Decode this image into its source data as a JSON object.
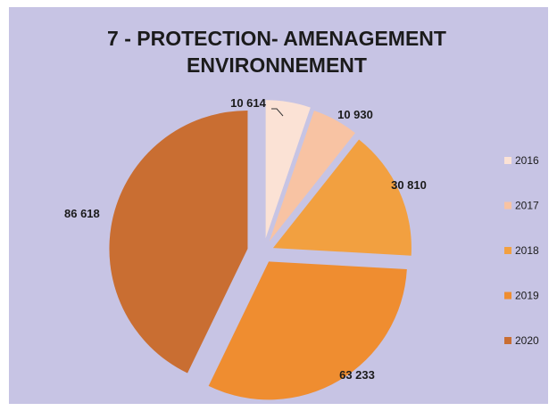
{
  "chart_data": {
    "type": "pie",
    "title": [
      "7 - PROTECTION- AMENAGEMENT",
      "ENVIRONNEMENT"
    ],
    "categories": [
      "2016",
      "2017",
      "2018",
      "2019",
      "2020"
    ],
    "values": [
      10614,
      10930,
      30810,
      63233,
      86618
    ],
    "data_labels": [
      "10 614",
      "10 930",
      "30 810",
      "63 233",
      "86 618"
    ],
    "colors": [
      "#fbe2d5",
      "#f8c3a3",
      "#f2a040",
      "#ef8d30",
      "#c96e32"
    ],
    "exploded": true,
    "legend_position": "right"
  }
}
